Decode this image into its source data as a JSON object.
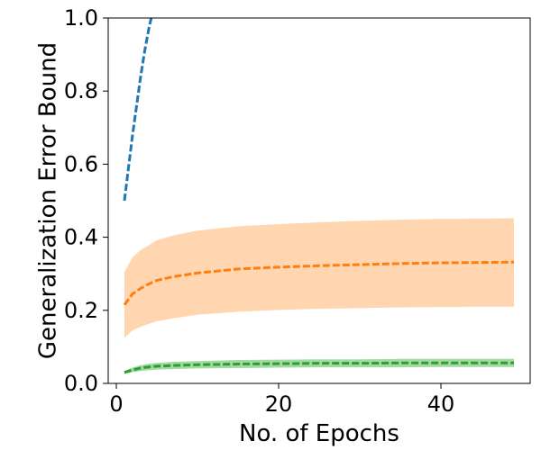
{
  "chart_data": {
    "type": "line",
    "title": "",
    "xlabel": "No. of Epochs",
    "ylabel": "Generalization Error Bound",
    "xlim": [
      -1,
      51
    ],
    "ylim": [
      0.0,
      1.0
    ],
    "xticks": [
      0,
      20,
      40
    ],
    "yticks": [
      0.0,
      0.2,
      0.4,
      0.6,
      0.8,
      1.0
    ],
    "xtick_labels": [
      "0",
      "20",
      "40"
    ],
    "ytick_labels": [
      "0.0",
      "0.2",
      "0.4",
      "0.6",
      "0.8",
      "1.0"
    ],
    "grid": false,
    "legend": "none",
    "series": [
      {
        "color": "#1f77b4",
        "style": "dashed",
        "x": [
          1,
          1.5,
          2,
          2.5,
          3,
          3.5,
          4,
          4.3
        ],
        "y": [
          0.5,
          0.59,
          0.68,
          0.76,
          0.84,
          0.91,
          0.97,
          1.0
        ]
      },
      {
        "color": "#ff7f0e",
        "band_color": "#ffd6b0",
        "style": "dashed",
        "x": [
          1,
          2,
          3,
          4,
          5,
          7,
          10,
          15,
          20,
          25,
          30,
          35,
          40,
          45,
          49
        ],
        "y": [
          0.215,
          0.245,
          0.26,
          0.272,
          0.282,
          0.292,
          0.302,
          0.313,
          0.318,
          0.322,
          0.325,
          0.328,
          0.33,
          0.331,
          0.332
        ],
        "lower": [
          0.125,
          0.145,
          0.155,
          0.163,
          0.17,
          0.178,
          0.188,
          0.196,
          0.201,
          0.204,
          0.206,
          0.208,
          0.209,
          0.21,
          0.21
        ],
        "upper": [
          0.305,
          0.345,
          0.365,
          0.378,
          0.392,
          0.405,
          0.418,
          0.43,
          0.436,
          0.441,
          0.445,
          0.448,
          0.45,
          0.451,
          0.452
        ]
      },
      {
        "color": "#2ca02c",
        "band_color": "#a3d9a3",
        "style": "dashed",
        "x": [
          1,
          2,
          3,
          4,
          5,
          7,
          10,
          15,
          20,
          25,
          30,
          35,
          40,
          45,
          49
        ],
        "y": [
          0.03,
          0.037,
          0.042,
          0.045,
          0.047,
          0.049,
          0.051,
          0.053,
          0.054,
          0.055,
          0.055,
          0.056,
          0.056,
          0.056,
          0.056
        ],
        "lower": [
          0.026,
          0.031,
          0.034,
          0.036,
          0.038,
          0.039,
          0.041,
          0.042,
          0.043,
          0.044,
          0.044,
          0.044,
          0.045,
          0.045,
          0.045
        ],
        "upper": [
          0.034,
          0.043,
          0.05,
          0.054,
          0.056,
          0.059,
          0.061,
          0.064,
          0.065,
          0.066,
          0.066,
          0.067,
          0.067,
          0.067,
          0.067
        ]
      }
    ]
  }
}
